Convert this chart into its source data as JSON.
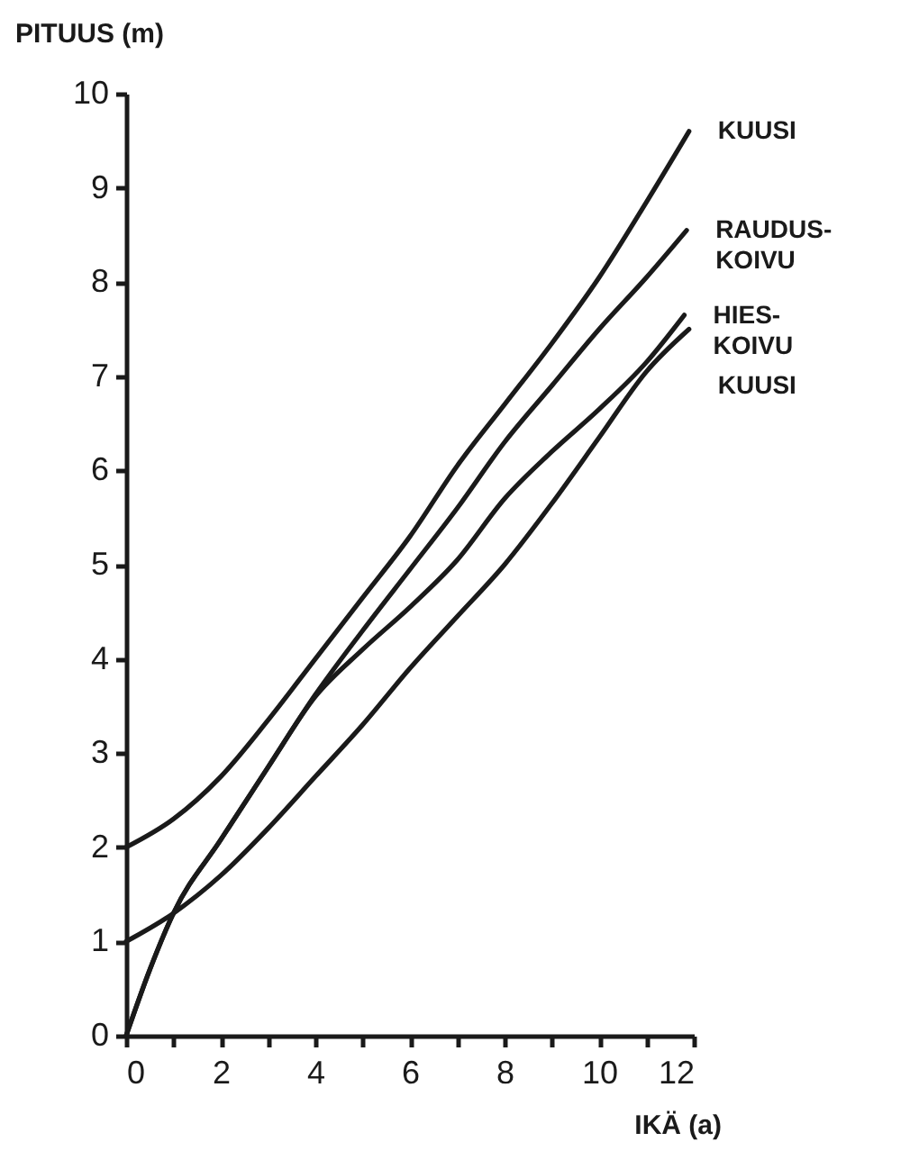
{
  "chart_data": {
    "type": "line",
    "xlabel": "IKÄ (a)",
    "ylabel": "PITUUS (m)",
    "xlim": [
      0,
      12
    ],
    "ylim": [
      0,
      10
    ],
    "xticks": [
      0,
      {
        "value": 1,
        "label": null
      },
      2,
      {
        "value": 3,
        "label": null
      },
      4,
      {
        "value": 5,
        "label": null
      },
      6,
      {
        "value": 7,
        "label": null
      },
      8,
      {
        "value": 9,
        "label": null
      },
      10,
      {
        "value": 11,
        "label": null
      },
      12
    ],
    "yticks": [
      0,
      1,
      2,
      3,
      4,
      5,
      6,
      7,
      8,
      9,
      10
    ],
    "grid": false,
    "legend": false,
    "marker": "none",
    "line_style": "solid",
    "series": [
      {
        "name": "KUUSI",
        "color": "#1a1a1a",
        "x": [
          0,
          1,
          2,
          3,
          4,
          5,
          6,
          7,
          8,
          9,
          10,
          11,
          11.9
        ],
        "values": [
          2,
          2.3,
          2.75,
          3.35,
          4.0,
          4.65,
          5.3,
          6.05,
          6.7,
          7.35,
          8.05,
          8.85,
          9.6
        ]
      },
      {
        "name": "RAUDUS-KOIVU",
        "color": "#1a1a1a",
        "x": [
          0,
          0.5,
          1,
          2,
          3,
          4,
          5,
          6,
          7,
          8,
          9,
          10,
          11,
          11.85
        ],
        "values": [
          0,
          0.7,
          1.3,
          2.08,
          2.85,
          3.62,
          4.3,
          4.95,
          5.6,
          6.3,
          6.9,
          7.5,
          8.05,
          8.55
        ]
      },
      {
        "name": "HIES-KOIVU",
        "color": "#1a1a1a",
        "x": [
          0,
          0.5,
          1,
          2,
          3,
          4,
          5,
          6,
          7,
          8,
          9,
          10,
          11,
          11.8
        ],
        "values": [
          0,
          0.7,
          1.3,
          2.08,
          2.85,
          3.6,
          4.1,
          4.55,
          5.05,
          5.7,
          6.2,
          6.65,
          7.15,
          7.65
        ]
      },
      {
        "name": "KUUSI",
        "color": "#1a1a1a",
        "x": [
          0,
          1,
          2,
          3,
          4,
          5,
          6,
          7,
          8,
          9,
          10,
          11,
          11.9
        ],
        "values": [
          1,
          1.3,
          1.7,
          2.2,
          2.75,
          3.3,
          3.9,
          4.45,
          5.0,
          5.65,
          6.35,
          7.05,
          7.5
        ]
      }
    ]
  }
}
